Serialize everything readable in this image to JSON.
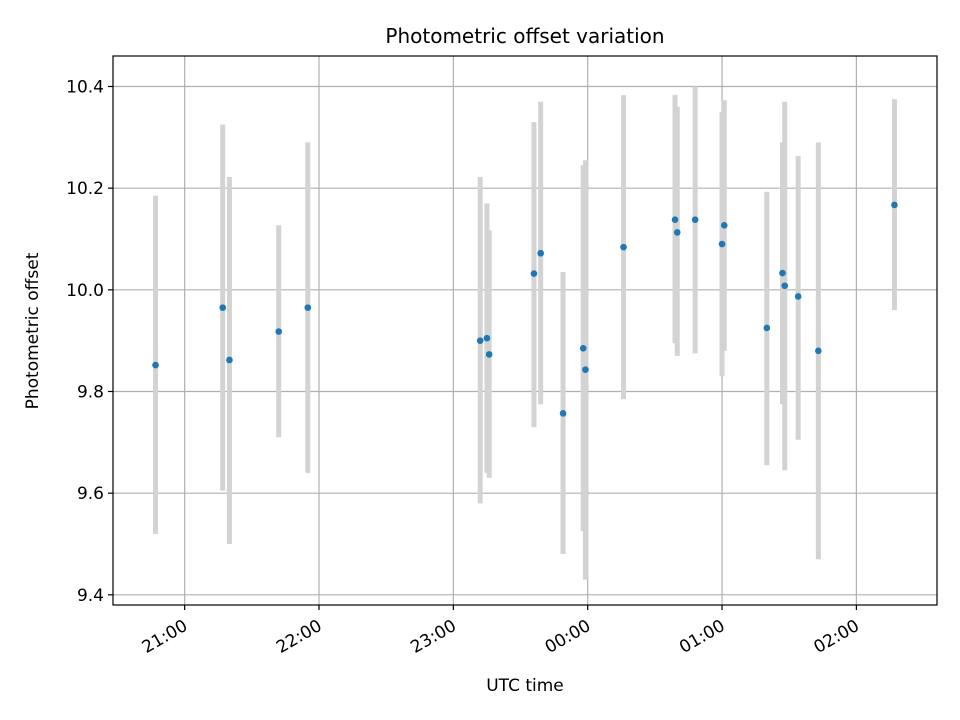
{
  "chart_data": {
    "type": "scatter",
    "title": "Photometric offset variation",
    "xlabel": "UTC time",
    "ylabel": "Photometric offset",
    "grid": true,
    "legend": "none",
    "x_axis": {
      "kind": "time",
      "range": [
        "20:28",
        "02:36"
      ],
      "ticks": [
        "21:00",
        "22:00",
        "23:00",
        "00:00",
        "01:00",
        "02:00"
      ]
    },
    "y_axis": {
      "range": [
        9.38,
        10.46
      ],
      "ticks": [
        "9.4",
        "9.6",
        "9.8",
        "10.0",
        "10.2",
        "10.4"
      ]
    },
    "colors": {
      "points": "#1f77b4",
      "errorbars": "#d3d3d3",
      "grid": "#b0b0b0"
    },
    "points": [
      {
        "x": "20:47",
        "y": 9.852,
        "ylow": 9.52,
        "yhigh": 10.185
      },
      {
        "x": "21:17",
        "y": 9.965,
        "ylow": 9.605,
        "yhigh": 10.325
      },
      {
        "x": "21:20",
        "y": 9.862,
        "ylow": 9.5,
        "yhigh": 10.222
      },
      {
        "x": "21:42",
        "y": 9.918,
        "ylow": 9.71,
        "yhigh": 10.127
      },
      {
        "x": "21:55",
        "y": 9.965,
        "ylow": 9.64,
        "yhigh": 10.29
      },
      {
        "x": "23:12",
        "y": 9.9,
        "ylow": 9.58,
        "yhigh": 10.222
      },
      {
        "x": "23:15",
        "y": 9.905,
        "ylow": 9.64,
        "yhigh": 10.17
      },
      {
        "x": "23:16",
        "y": 9.873,
        "ylow": 9.63,
        "yhigh": 10.117
      },
      {
        "x": "23:36",
        "y": 10.032,
        "ylow": 9.73,
        "yhigh": 10.33
      },
      {
        "x": "23:39",
        "y": 10.072,
        "ylow": 9.775,
        "yhigh": 10.37
      },
      {
        "x": "23:49",
        "y": 9.757,
        "ylow": 9.48,
        "yhigh": 10.035
      },
      {
        "x": "23:58",
        "y": 9.885,
        "ylow": 9.525,
        "yhigh": 10.245
      },
      {
        "x": "23:59",
        "y": 9.843,
        "ylow": 9.43,
        "yhigh": 10.255
      },
      {
        "x": "00:16",
        "y": 10.084,
        "ylow": 9.785,
        "yhigh": 10.383
      },
      {
        "x": "00:39",
        "y": 10.138,
        "ylow": 9.895,
        "yhigh": 10.383
      },
      {
        "x": "00:40",
        "y": 10.113,
        "ylow": 9.87,
        "yhigh": 10.36
      },
      {
        "x": "00:48",
        "y": 10.138,
        "ylow": 9.875,
        "yhigh": 10.4
      },
      {
        "x": "01:00",
        "y": 10.09,
        "ylow": 9.83,
        "yhigh": 10.35
      },
      {
        "x": "01:01",
        "y": 10.127,
        "ylow": 9.88,
        "yhigh": 10.373
      },
      {
        "x": "01:20",
        "y": 9.925,
        "ylow": 9.655,
        "yhigh": 10.193
      },
      {
        "x": "01:27",
        "y": 10.033,
        "ylow": 9.775,
        "yhigh": 10.29
      },
      {
        "x": "01:28",
        "y": 10.008,
        "ylow": 9.645,
        "yhigh": 10.37
      },
      {
        "x": "01:34",
        "y": 9.987,
        "ylow": 9.705,
        "yhigh": 10.263
      },
      {
        "x": "01:43",
        "y": 9.88,
        "ylow": 9.47,
        "yhigh": 10.29
      },
      {
        "x": "02:17",
        "y": 10.167,
        "ylow": 9.96,
        "yhigh": 10.375
      }
    ]
  }
}
